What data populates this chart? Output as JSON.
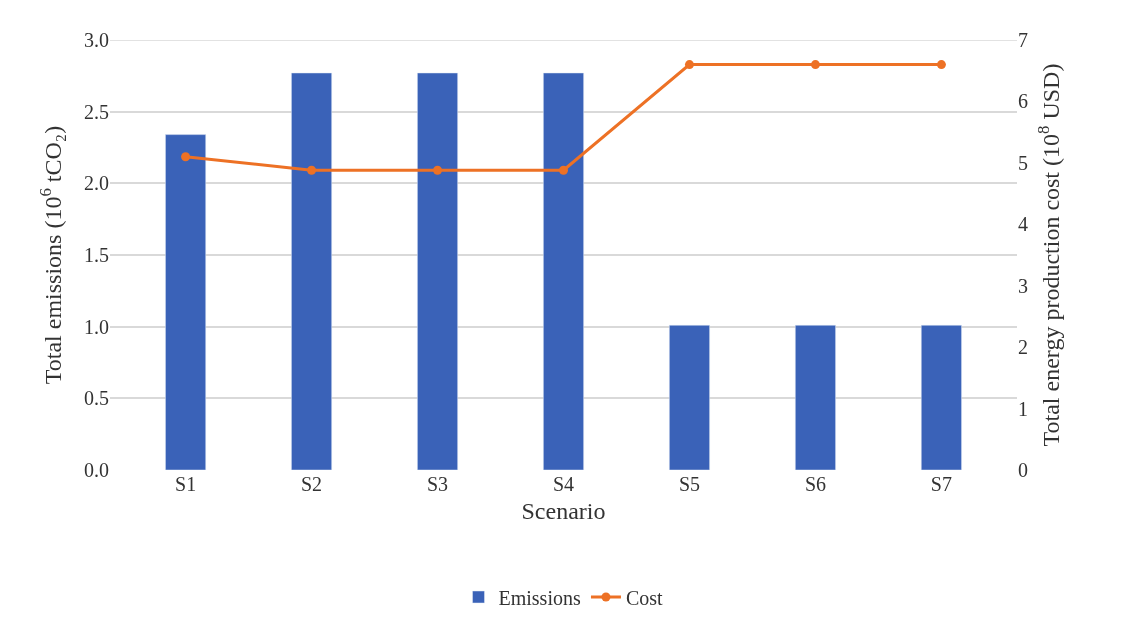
{
  "chart_data": {
    "type": "bar",
    "xlabel": "Scenario",
    "ylabel": "Total emissions (10$^{6}$ tCO₂)",
    "y2label": "Total energy production cost (10$^{8}$ USD)",
    "categories": [
      "S1",
      "S2",
      "S3",
      "S4",
      "S5",
      "S6",
      "S7"
    ],
    "series": [
      {
        "name": "Emissions",
        "color": "#3a62b8",
        "values": [
          2.34,
          2.77,
          2.77,
          2.77,
          1.01,
          1.01,
          1.01
        ]
      },
      {
        "name": "Cost",
        "type": "line",
        "axis": "y2",
        "color": "#ed7125",
        "marker": "circle",
        "values": [
          5.1,
          4.88,
          4.88,
          4.88,
          6.6,
          6.6,
          6.6
        ]
      }
    ],
    "ylim": [
      0,
      3
    ],
    "yticks": [
      {
        "value": 0,
        "label": "0.0"
      },
      0.5,
      {
        "value": 1,
        "label": "1.0"
      },
      1.5,
      {
        "value": 2,
        "label": "2.0"
      },
      2.5,
      {
        "value": 3,
        "label": "3.0"
      }
    ],
    "y2lim": [
      0,
      7
    ],
    "y2ticks": [
      0,
      1,
      2,
      3,
      4,
      5,
      6,
      7
    ],
    "grid": "y",
    "legend": "bottom"
  }
}
